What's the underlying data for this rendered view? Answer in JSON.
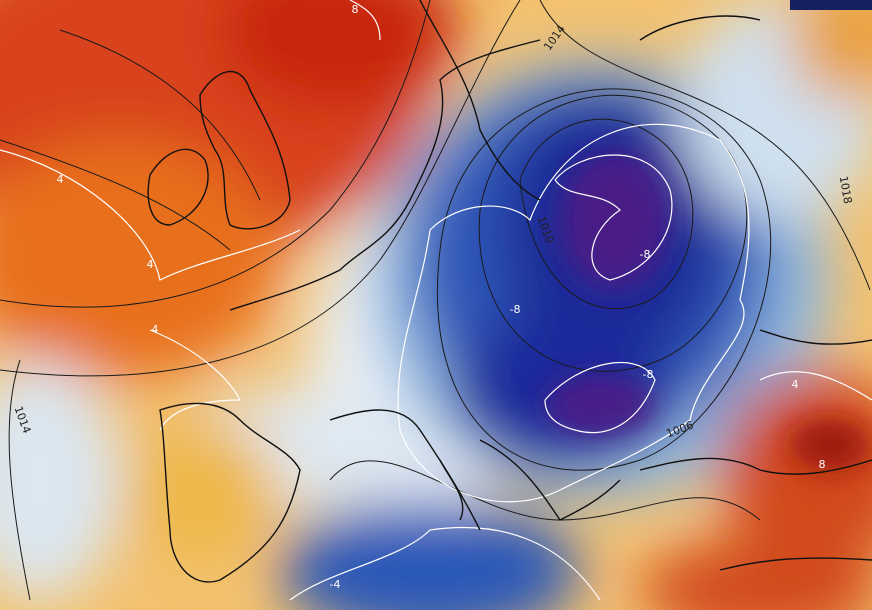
{
  "map": {
    "contour_labels": [
      {
        "text": "8"
      },
      {
        "text": "1014"
      },
      {
        "text": "1018"
      },
      {
        "text": "4"
      },
      {
        "text": "4"
      },
      {
        "text": "4"
      },
      {
        "text": "1010"
      },
      {
        "text": "-8"
      },
      {
        "text": "-8"
      },
      {
        "text": "-8"
      },
      {
        "text": "1006"
      },
      {
        "text": "1014"
      },
      {
        "text": "8"
      },
      {
        "text": "4"
      },
      {
        "text": "-4"
      }
    ]
  }
}
